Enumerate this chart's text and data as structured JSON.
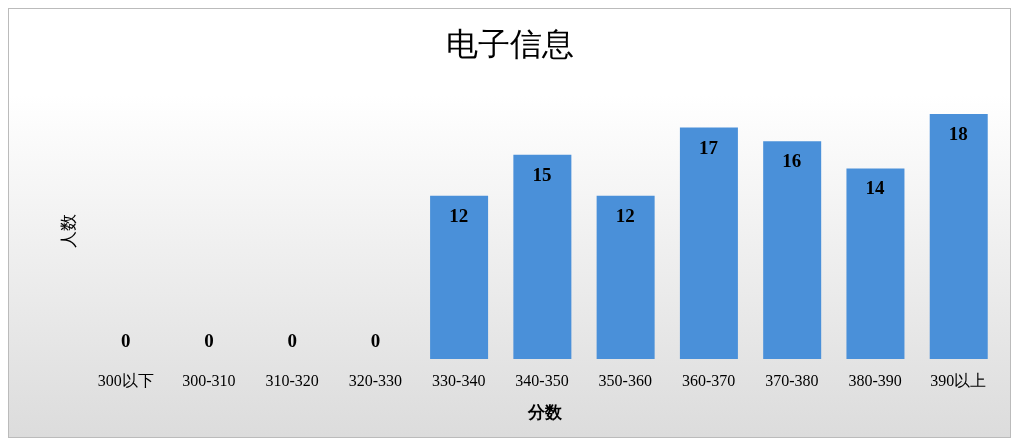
{
  "chart_data": {
    "type": "bar",
    "title": "电子信息",
    "xlabel": "分数",
    "ylabel": "人数",
    "categories": [
      "300以下",
      "300-310",
      "310-320",
      "320-330",
      "330-340",
      "340-350",
      "350-360",
      "360-370",
      "370-380",
      "380-390",
      "390以上"
    ],
    "values": [
      0,
      0,
      0,
      0,
      12,
      15,
      12,
      17,
      16,
      14,
      18
    ],
    "color": "#4a90d9",
    "data_labels": true
  }
}
